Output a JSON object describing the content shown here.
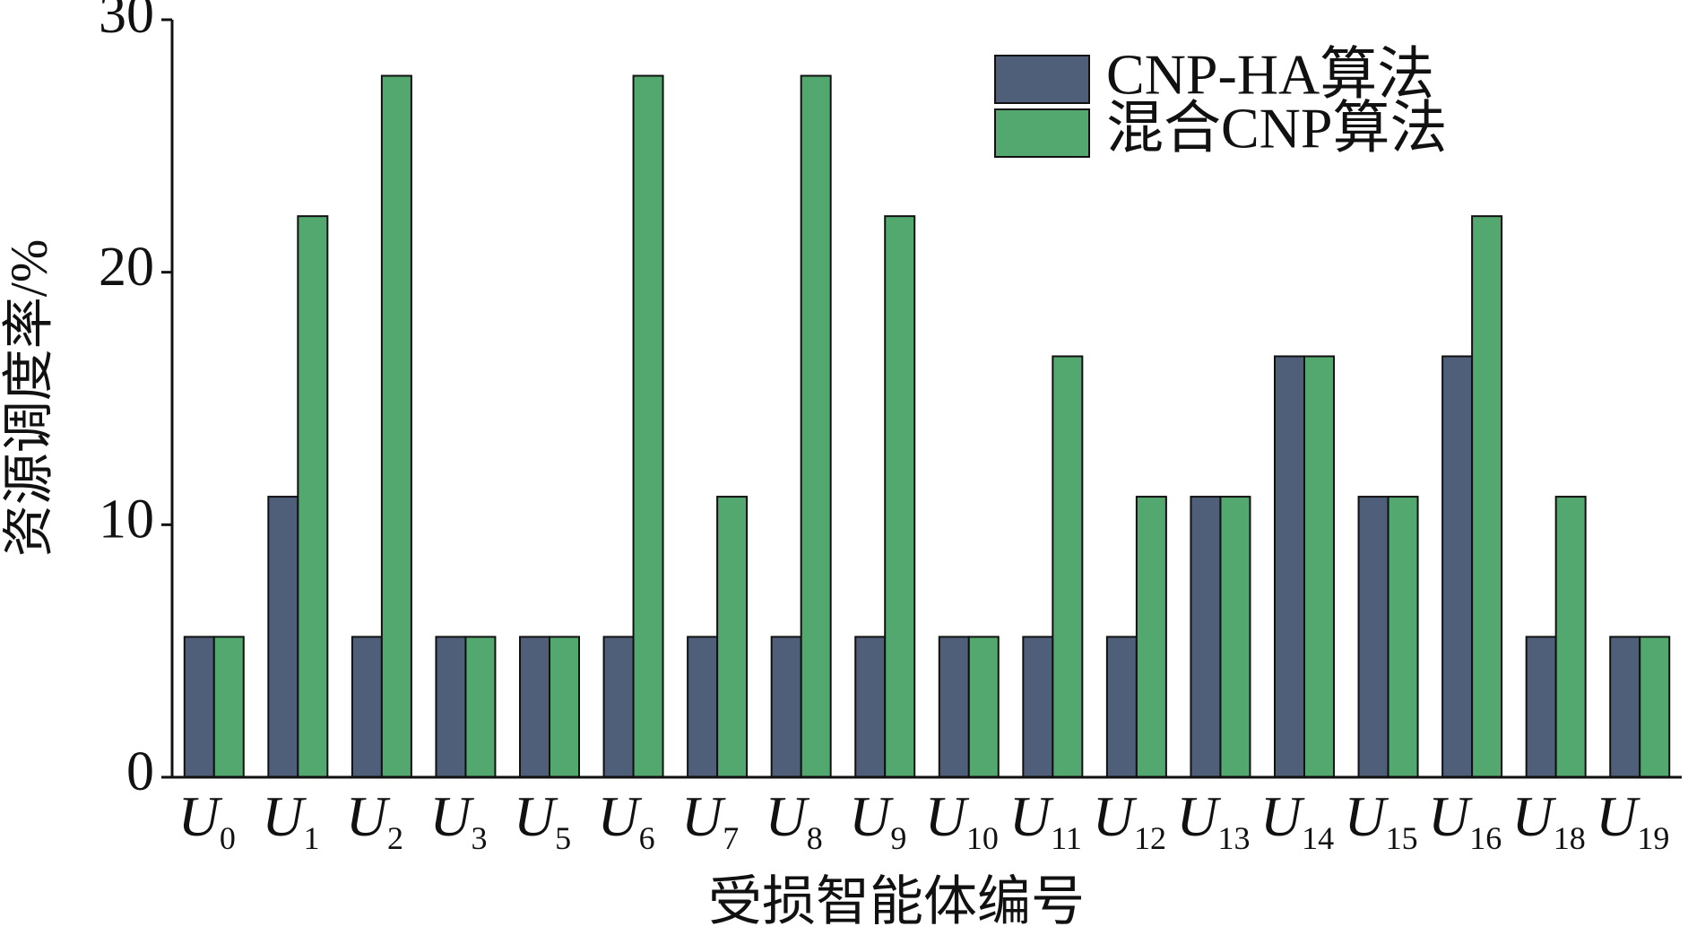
{
  "chart_data": {
    "type": "bar",
    "x_label": "受损智能体编号",
    "y_label": "资源调度率/%",
    "categories": [
      "U0",
      "U1",
      "U2",
      "U3",
      "U5",
      "U6",
      "U7",
      "U8",
      "U9",
      "U10",
      "U11",
      "U12",
      "U13",
      "U14",
      "U15",
      "U16",
      "U18",
      "U19"
    ],
    "series": [
      {
        "name": "CNP-HA算法",
        "color": "#4f5f7a",
        "values": [
          5.56,
          11.11,
          5.56,
          5.56,
          5.56,
          5.56,
          5.56,
          5.56,
          5.56,
          5.56,
          5.56,
          5.56,
          11.11,
          16.67,
          11.11,
          16.67,
          5.56,
          5.56
        ]
      },
      {
        "name": "混合CNP算法",
        "color": "#52a86e",
        "values": [
          5.56,
          22.22,
          27.78,
          5.56,
          5.56,
          27.78,
          11.11,
          27.78,
          22.22,
          5.56,
          16.67,
          11.11,
          11.11,
          16.67,
          11.11,
          22.22,
          11.11,
          5.56
        ]
      }
    ],
    "ylim": [
      0,
      30
    ],
    "yticks": [
      0,
      10,
      20,
      30
    ],
    "grid": false,
    "legend": "upper right"
  }
}
